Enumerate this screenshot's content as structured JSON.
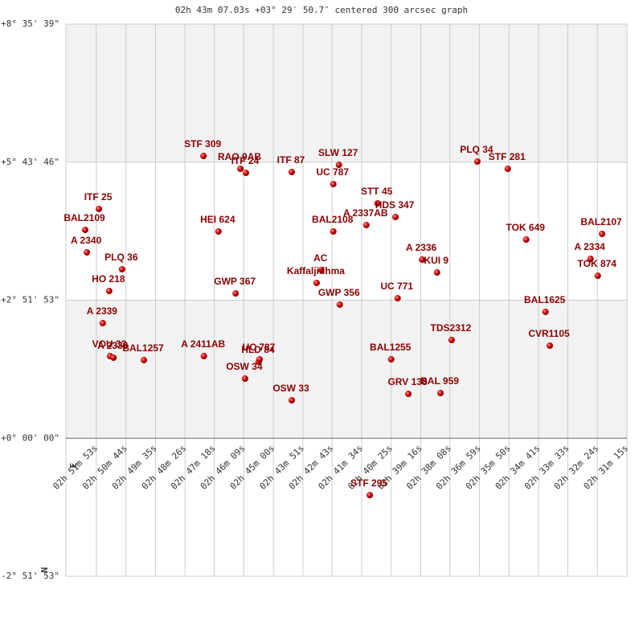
{
  "chart_data": {
    "type": "scatter",
    "title": "02h 43m 07.03s +03° 29′ 50.7″ centered 300 arcsec graph",
    "compass": {
      "east": "E",
      "north": "N"
    },
    "color": "#cc0000",
    "label_color": "#8b0000",
    "band_color": "#f2f2f2",
    "grid": true,
    "xlim": [
      10384,
      9075
    ],
    "ylim": [
      -2.86472,
      8.59417
    ],
    "xticks": [
      {
        "value": 10313,
        "label": "02h 51m 53s"
      },
      {
        "value": 10244,
        "label": "02h 50m 44s"
      },
      {
        "value": 10175,
        "label": "02h 49m 35s"
      },
      {
        "value": 10106,
        "label": "02h 48m 26s"
      },
      {
        "value": 10038,
        "label": "02h 47m 18s"
      },
      {
        "value": 9969,
        "label": "02h 46m 09s"
      },
      {
        "value": 9900,
        "label": "02h 45m 00s"
      },
      {
        "value": 9831,
        "label": "02h 43m 51s"
      },
      {
        "value": 9763,
        "label": "02h 42m 43s"
      },
      {
        "value": 9694,
        "label": "02h 41m 34s"
      },
      {
        "value": 9625,
        "label": "02h 40m 25s"
      },
      {
        "value": 9556,
        "label": "02h 39m 16s"
      },
      {
        "value": 9488,
        "label": "02h 38m 08s"
      },
      {
        "value": 9419,
        "label": "02h 36m 59s"
      },
      {
        "value": 9350,
        "label": "02h 35m 50s"
      },
      {
        "value": 9281,
        "label": "02h 34m 41s"
      },
      {
        "value": 9213,
        "label": "02h 33m 33s"
      },
      {
        "value": 9144,
        "label": "02h 32m 24s"
      },
      {
        "value": 9075,
        "label": "02h 31m 15s"
      }
    ],
    "yticks": [
      {
        "value": 8.59417,
        "label": "+8° 35' 39\""
      },
      {
        "value": 5.72944,
        "label": "+5° 43' 46\""
      },
      {
        "value": 2.86472,
        "label": "+2° 51' 53\""
      },
      {
        "value": 0,
        "label": "+0° 00' 00\""
      },
      {
        "value": -2.86472,
        "label": "-2° 51' 53\""
      }
    ],
    "labels": [
      "STF 309",
      "RAO 9AB",
      "ITF 24",
      "ITF 87",
      "SLW 127",
      "UC 787",
      "PLQ 34",
      "STF 281",
      "ITF 25",
      "BAL2109",
      "A 2340",
      "PLQ 36",
      "HO 218",
      "A 2339",
      "VOU 33",
      "A 2338",
      "BAL1257",
      "HEI 624",
      "GWP 367",
      "A 2411AB",
      "HLD 84",
      "UC 787",
      "OSW 34",
      "OSW 33",
      "BAL2108",
      "AC",
      "Kaffaljidhma",
      "GWP 356",
      "STT 45",
      "A 2337AB",
      "HDS 347",
      "UC 771",
      "A 2336",
      "KUI 9",
      "BAL1255",
      "GRV 138",
      "BAL 959",
      "TDS2312",
      "STF 295",
      "TOK 649",
      "BAL1625",
      "CVR1105",
      "BAL2107",
      "A 2334",
      "TOK 874"
    ],
    "x": [
      10063,
      9977,
      9964,
      9857,
      9747,
      9760,
      9424,
      9353,
      10307,
      10339,
      10335,
      10253,
      10283,
      10298,
      10281,
      10273,
      10202,
      10028,
      9988,
      10062,
      9934,
      9932,
      9966,
      9857,
      9760,
      9788,
      9799,
      9745,
      9657,
      9683,
      9615,
      9610,
      9553,
      9518,
      9625,
      9585,
      9510,
      9484,
      9675,
      9310,
      9265,
      9255,
      9133,
      9160,
      9143
    ],
    "values": [
      5.858,
      5.592,
      5.508,
      5.525,
      5.675,
      5.275,
      5.742,
      5.592,
      4.758,
      4.324,
      3.857,
      3.507,
      3.056,
      2.389,
      1.705,
      1.672,
      1.622,
      4.291,
      3.006,
      1.705,
      1.588,
      1.638,
      1.238,
      0.788,
      4.291,
      3.49,
      3.223,
      2.773,
      4.874,
      4.424,
      4.591,
      2.906,
      3.707,
      3.44,
      1.638,
      0.921,
      0.938,
      2.039,
      -1.18,
      4.124,
      2.623,
      1.922,
      4.241,
      3.723,
      3.373
    ]
  }
}
